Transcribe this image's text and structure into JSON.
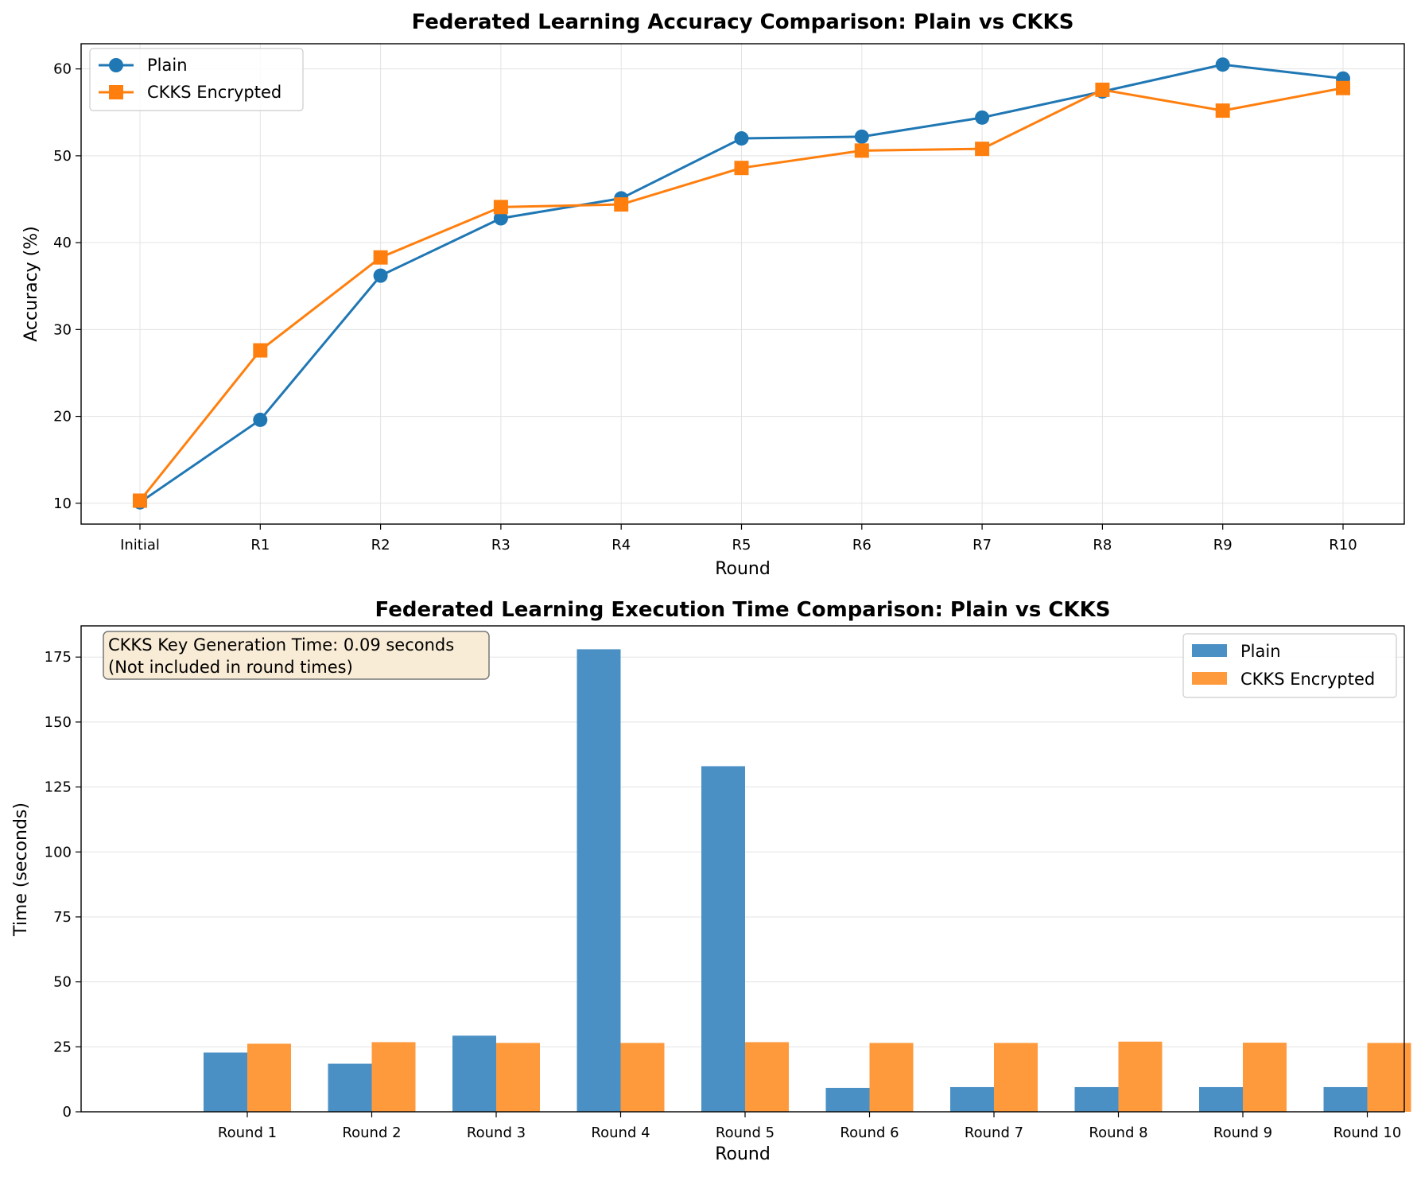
{
  "chart_data": [
    {
      "type": "line",
      "title": "Federated Learning Accuracy Comparison: Plain vs CKKS",
      "xlabel": "Round",
      "ylabel": "Accuracy (%)",
      "categories": [
        "Initial",
        "R1",
        "R2",
        "R3",
        "R4",
        "R5",
        "R6",
        "R7",
        "R8",
        "R9",
        "R10"
      ],
      "ylim": [
        7.6,
        62.9
      ],
      "yticks": [
        10,
        20,
        30,
        40,
        50,
        60
      ],
      "grid": true,
      "legend_position": "upper-left",
      "series": [
        {
          "name": "Plain",
          "color": "#1f77b4",
          "marker": "circle",
          "values": [
            10.1,
            19.6,
            36.2,
            42.8,
            45.1,
            52.0,
            52.2,
            54.4,
            57.4,
            60.5,
            58.9
          ]
        },
        {
          "name": "CKKS Encrypted",
          "color": "#ff7f0e",
          "marker": "square",
          "values": [
            10.3,
            27.6,
            38.3,
            44.1,
            44.4,
            48.6,
            50.6,
            50.8,
            57.6,
            55.2,
            57.8
          ]
        }
      ]
    },
    {
      "type": "bar",
      "title": "Federated Learning Execution Time Comparison: Plain vs CKKS",
      "xlabel": "Round",
      "ylabel": "Time (seconds)",
      "categories": [
        "Round 1",
        "Round 2",
        "Round 3",
        "Round 4",
        "Round 5",
        "Round 6",
        "Round 7",
        "Round 8",
        "Round 9",
        "Round 10"
      ],
      "ylim": [
        0,
        187
      ],
      "yticks": [
        0,
        25,
        50,
        75,
        100,
        125,
        150,
        175
      ],
      "grid": true,
      "legend_position": "upper-right",
      "annotation": {
        "lines": [
          "CKKS Key Generation Time: 0.09 seconds",
          "(Not included in round times)"
        ],
        "position": "upper-left"
      },
      "series": [
        {
          "name": "Plain",
          "color": "#4a90c4",
          "values": [
            22.8,
            18.5,
            29.3,
            178.0,
            133.0,
            9.2,
            9.5,
            9.5,
            9.5,
            9.5
          ]
        },
        {
          "name": "CKKS Encrypted",
          "color": "#ff9a3c",
          "values": [
            26.2,
            26.8,
            26.5,
            26.5,
            26.8,
            26.5,
            26.5,
            27.0,
            26.6,
            26.5
          ]
        }
      ]
    }
  ]
}
